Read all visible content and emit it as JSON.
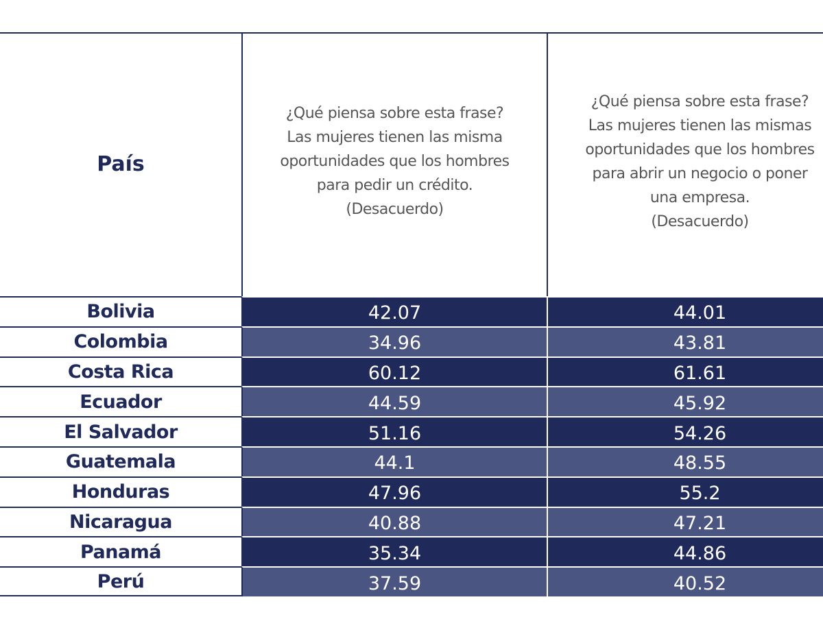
{
  "table": {
    "header": {
      "country": "País",
      "columns": [
        [
          "¿Qué piensa sobre esta frase?",
          "Las mujeres tienen las misma",
          "oportunidades que los hombres",
          "para pedir un crédito.",
          "(Desacuerdo)"
        ],
        [
          "¿Qué piensa sobre esta frase?",
          "Las mujeres tienen las mismas",
          "oportunidades que los hombres",
          "para abrir un negocio o poner",
          "una empresa.",
          "(Desacuerdo)"
        ]
      ]
    },
    "rows": [
      [
        "Bolivia",
        42.07,
        44.01
      ],
      [
        "Colombia",
        34.96,
        43.81
      ],
      [
        "Costa Rica",
        60.12,
        61.61
      ],
      [
        "Ecuador",
        44.59,
        45.92
      ],
      [
        "El Salvador",
        51.16,
        54.26
      ],
      [
        "Guatemala",
        44.1,
        48.55
      ],
      [
        "Honduras",
        47.96,
        55.2
      ],
      [
        "Nicaragua",
        40.88,
        47.21
      ],
      [
        "Panamá",
        35.34,
        44.86
      ],
      [
        "Perú",
        37.59,
        40.52
      ]
    ]
  }
}
